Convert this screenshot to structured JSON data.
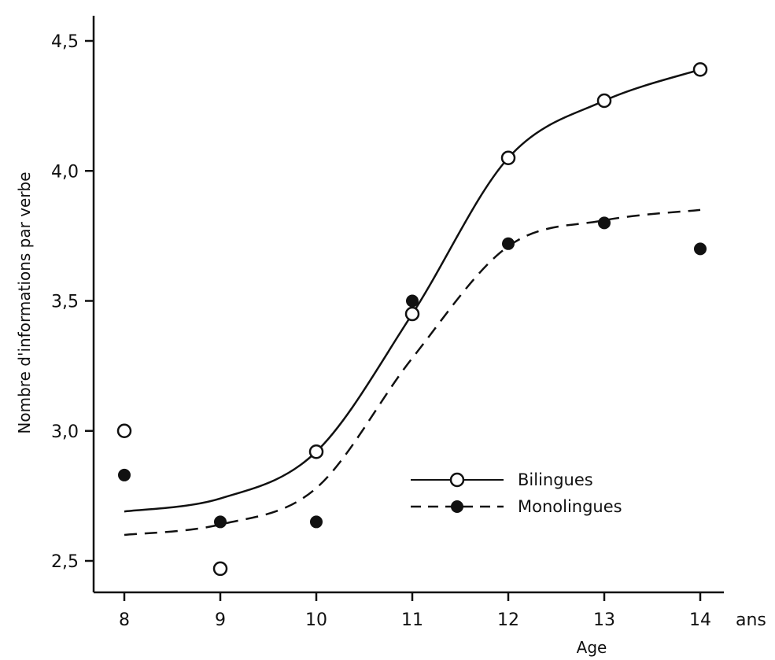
{
  "chart_data": {
    "type": "scatter",
    "title": "",
    "xlabel": "Age",
    "xunit": "ans",
    "ylabel": "Nombre d'informations par verbe",
    "xlim": [
      8,
      14
    ],
    "ylim": [
      2.5,
      4.5
    ],
    "x_ticks": [
      "8",
      "9",
      "10",
      "11",
      "12",
      "13",
      "14"
    ],
    "y_ticks": [
      "2,5",
      "3,0",
      "3,5",
      "4,0",
      "4,5"
    ],
    "grid": false,
    "legend_position": "lower-right",
    "series": [
      {
        "name": "Bilingues",
        "marker": "open-circle",
        "line": "solid",
        "x": [
          8,
          9,
          10,
          11,
          12,
          13,
          14
        ],
        "values": [
          3.0,
          2.47,
          2.92,
          3.45,
          4.05,
          4.27,
          4.39
        ],
        "fit_x": [
          8,
          9,
          10,
          11,
          12,
          13,
          14
        ],
        "fit_y": [
          2.69,
          2.74,
          2.92,
          3.45,
          4.05,
          4.27,
          4.39
        ]
      },
      {
        "name": "Monolingues",
        "marker": "filled-circle",
        "line": "dashed",
        "x": [
          8,
          9,
          10,
          11,
          12,
          13,
          14
        ],
        "values": [
          2.83,
          2.65,
          2.65,
          3.5,
          3.72,
          3.8,
          3.7
        ],
        "fit_x": [
          8,
          9,
          10,
          11,
          12,
          13,
          14
        ],
        "fit_y": [
          2.6,
          2.64,
          2.78,
          3.28,
          3.71,
          3.81,
          3.85
        ]
      }
    ]
  }
}
